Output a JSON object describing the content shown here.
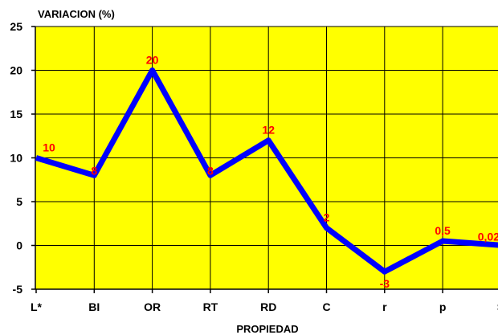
{
  "chart_data": {
    "type": "line",
    "ylabel": "VARIACION (%)",
    "xlabel": "PROPIEDAD",
    "categories": [
      "L*",
      "BI",
      "OR",
      "RT",
      "RD",
      "C",
      "r",
      "p",
      "S"
    ],
    "series": [
      {
        "values": [
          10,
          8,
          20,
          8,
          12,
          2,
          -3,
          0.5,
          0.02
        ],
        "labels": [
          "10",
          "8",
          "20",
          "8",
          "12",
          "2",
          "-3",
          "0,5",
          "0,02"
        ]
      }
    ],
    "ylim": [
      -5,
      25
    ],
    "yticks": [
      "-5",
      "0",
      "5",
      "10",
      "15",
      "20",
      "25"
    ],
    "grid": true,
    "colors": {
      "plot_background": "#ffff00",
      "line": "#0000ff",
      "data_labels": "#ff0000",
      "grid": "#000000"
    }
  }
}
